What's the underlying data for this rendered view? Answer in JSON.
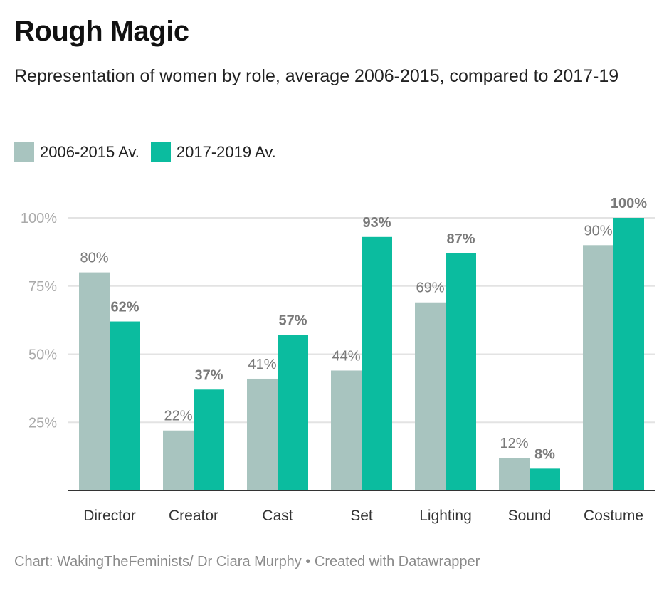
{
  "title": "Rough Magic",
  "subtitle": "Representation of women by role, average 2006-2015, compared to 2017-19",
  "footer": "Chart: WakingTheFeminists/ Dr Ciara Murphy • Created with Datawrapper",
  "chart_data": {
    "type": "bar",
    "categories": [
      "Director",
      "Creator",
      "Cast",
      "Set",
      "Lighting",
      "Sound",
      "Costume"
    ],
    "series": [
      {
        "name": "2006-2015 Av.",
        "color": "#a8c4bf",
        "values": [
          80,
          22,
          41,
          44,
          69,
          12,
          90
        ]
      },
      {
        "name": "2017-2019 Av.",
        "color": "#0bbc9f",
        "values": [
          62,
          37,
          57,
          93,
          87,
          8,
          100
        ]
      }
    ],
    "yticks": [
      "25%",
      "50%",
      "75%",
      "100%"
    ],
    "ytick_values": [
      25,
      50,
      75,
      100
    ],
    "ylim": [
      0,
      100
    ],
    "grid": true,
    "legend": "top-left"
  }
}
